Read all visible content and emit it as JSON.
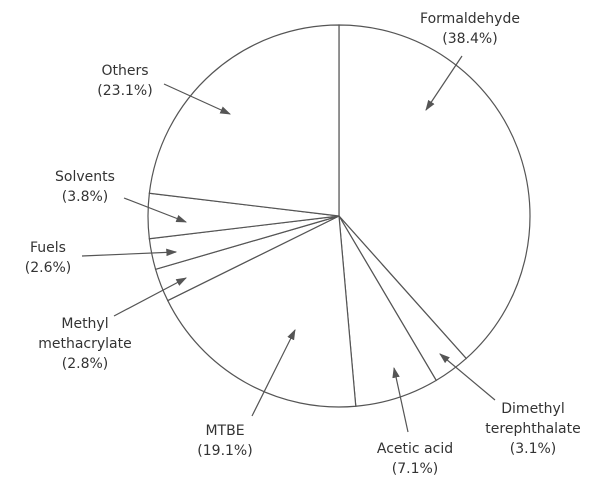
{
  "chart_data": {
    "type": "pie",
    "categories": [
      "Formaldehyde",
      "Dimethyl terephthalate",
      "Acetic acid",
      "MTBE",
      "Methyl methacrylate",
      "Fuels",
      "Solvents",
      "Others"
    ],
    "values": [
      38.4,
      3.1,
      7.1,
      19.1,
      2.8,
      2.6,
      3.8,
      23.1
    ],
    "value_labels": [
      "(38.4%)",
      "(3.1%)",
      "(7.1%)",
      "(19.1%)",
      "(2.8%)",
      "(2.6%)",
      "(3.8%)",
      "(23.1%)"
    ],
    "color": "#ffffff"
  }
}
